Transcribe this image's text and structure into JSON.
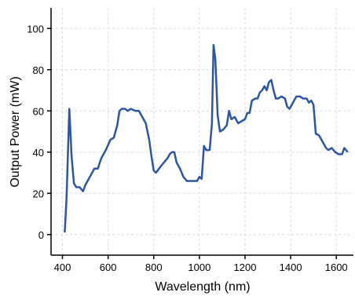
{
  "chart_data": {
    "type": "line",
    "x_label": "Wavelength (nm)",
    "y_label": "Output Power (mW)",
    "x": [
      410,
      418,
      430,
      440,
      450,
      460,
      475,
      490,
      500,
      520,
      540,
      555,
      570,
      590,
      610,
      625,
      640,
      650,
      660,
      675,
      685,
      700,
      720,
      735,
      750,
      765,
      780,
      790,
      800,
      810,
      830,
      845,
      860,
      870,
      880,
      890,
      900,
      915,
      930,
      945,
      960,
      975,
      990,
      1000,
      1010,
      1020,
      1030,
      1045,
      1055,
      1062,
      1070,
      1080,
      1090,
      1105,
      1120,
      1130,
      1140,
      1155,
      1170,
      1185,
      1200,
      1210,
      1220,
      1230,
      1245,
      1255,
      1265,
      1275,
      1285,
      1295,
      1305,
      1315,
      1325,
      1335,
      1345,
      1360,
      1375,
      1385,
      1395,
      1410,
      1425,
      1440,
      1455,
      1470,
      1480,
      1490,
      1500,
      1510,
      1525,
      1540,
      1555,
      1565,
      1580,
      1595,
      1610,
      1625,
      1635,
      1650
    ],
    "series": [
      {
        "color": "#2b56a3",
        "values": [
          1,
          18,
          61,
          38,
          25,
          23,
          23,
          21,
          24,
          28,
          32,
          32,
          37,
          41,
          46,
          47,
          53,
          60,
          61,
          61,
          60,
          61,
          60,
          60,
          57,
          54,
          46,
          38,
          31,
          30,
          33,
          35,
          37,
          39,
          40,
          40,
          35,
          32,
          28,
          26,
          26,
          26,
          26,
          28,
          27,
          43,
          41,
          41,
          54,
          92,
          85,
          58,
          50,
          51,
          53,
          60,
          56,
          57,
          54,
          55,
          56,
          59,
          59,
          65,
          66,
          66,
          69,
          70,
          72,
          70,
          74,
          75,
          70,
          66,
          66,
          67,
          66,
          62,
          61,
          64,
          67,
          67,
          66,
          66,
          64,
          65,
          63,
          49,
          48,
          45,
          42,
          41,
          42,
          40,
          39,
          39,
          42,
          40
        ]
      }
    ],
    "xlim": [
      350,
      1675
    ],
    "ylim": [
      -10,
      110
    ],
    "xticks": [
      400,
      600,
      800,
      1000,
      1200,
      1400,
      1600
    ],
    "yticks": [
      0,
      20,
      40,
      60,
      80,
      100
    ],
    "grid": true
  }
}
